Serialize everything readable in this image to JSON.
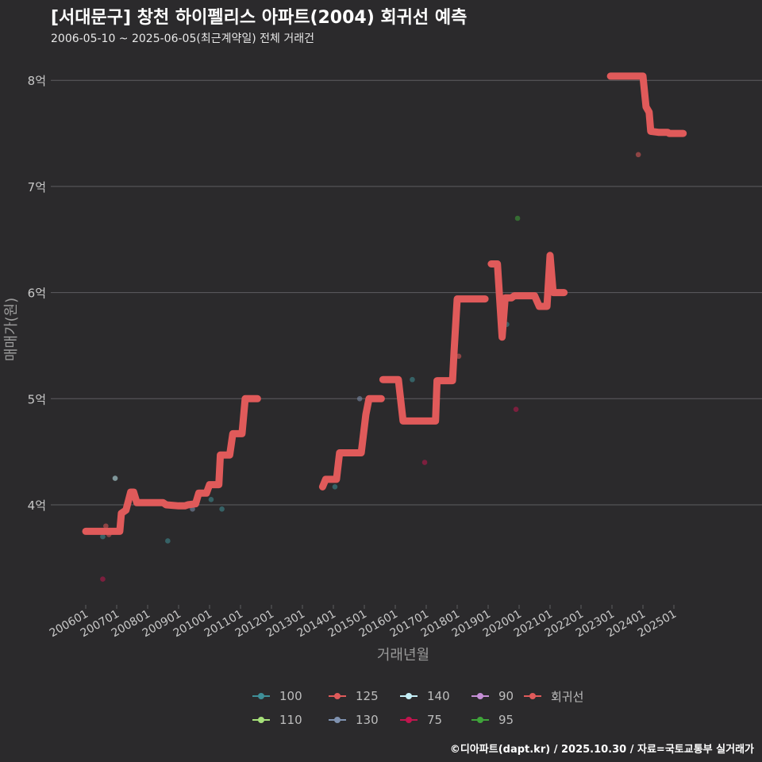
{
  "title": "[서대문구] 창천 하이펠리스 아파트(2004) 회귀선 예측",
  "subtitle": "2006-05-10 ~ 2025-06-05(최근계약일) 전체 거래건",
  "caption": "©디아파트(dapt.kr) / 2025.10.30 / 자료=국토교통부 실거래가",
  "colors": {
    "background": "#2b2a2c",
    "grid": "#5e5d60",
    "axis_text": "#c8c8c8",
    "axis_title": "#9a9a9a",
    "regression": "#e05a5a"
  },
  "legend": [
    {
      "label": "100",
      "color": "#3f8f98"
    },
    {
      "label": "110",
      "color": "#a6e07a"
    },
    {
      "label": "125",
      "color": "#e05a5a"
    },
    {
      "label": "130",
      "color": "#7f92b0"
    },
    {
      "label": "140",
      "color": "#c4eef6"
    },
    {
      "label": "75",
      "color": "#c0154e"
    },
    {
      "label": "90",
      "color": "#c58fd6"
    },
    {
      "label": "95",
      "color": "#3fa33a"
    },
    {
      "label": "회귀선",
      "color": "#e05a5a"
    }
  ],
  "chart_data": {
    "type": "scatter",
    "title": "[서대문구] 창천 하이펠리스 아파트(2004) 회귀선 예측",
    "xlabel": "거래년월",
    "ylabel": "매매가(원)",
    "x_ticks": [
      "200601",
      "200701",
      "200801",
      "200901",
      "201001",
      "201101",
      "201201",
      "201301",
      "201401",
      "201501",
      "201601",
      "201701",
      "201801",
      "201901",
      "202001",
      "202101",
      "202201",
      "202301",
      "202401",
      "202501"
    ],
    "xlim": [
      2005.5,
      2026.3
    ],
    "ylim": [
      3.05,
      8.45
    ],
    "y_ticks": [
      4,
      5,
      6,
      7,
      8
    ],
    "y_tick_labels": [
      "4억",
      "5억",
      "6억",
      "7억",
      "8억"
    ],
    "regression_line": [
      [
        [
          2006.0,
          3.75
        ],
        [
          2007.1,
          3.75
        ],
        [
          2007.15,
          3.92
        ],
        [
          2007.3,
          3.95
        ],
        [
          2007.45,
          4.12
        ],
        [
          2007.55,
          4.12
        ],
        [
          2007.65,
          4.02
        ],
        [
          2008.5,
          4.02
        ],
        [
          2008.6,
          4.0
        ],
        [
          2009.0,
          3.99
        ],
        [
          2009.2,
          3.99
        ],
        [
          2009.3,
          4.0
        ],
        [
          2009.55,
          4.01
        ],
        [
          2009.65,
          4.11
        ],
        [
          2009.9,
          4.11
        ],
        [
          2010.0,
          4.19
        ],
        [
          2010.3,
          4.19
        ],
        [
          2010.35,
          4.47
        ],
        [
          2010.65,
          4.47
        ],
        [
          2010.75,
          4.67
        ],
        [
          2011.05,
          4.67
        ],
        [
          2011.15,
          5.0
        ],
        [
          2011.55,
          5.0
        ]
      ],
      [
        [
          2013.65,
          4.17
        ],
        [
          2013.75,
          4.24
        ],
        [
          2014.1,
          4.24
        ],
        [
          2014.2,
          4.49
        ],
        [
          2014.9,
          4.49
        ],
        [
          2015.05,
          4.85
        ],
        [
          2015.15,
          5.0
        ],
        [
          2015.55,
          5.0
        ]
      ],
      [
        [
          2015.6,
          5.18
        ],
        [
          2016.1,
          5.18
        ],
        [
          2016.25,
          4.79
        ],
        [
          2017.3,
          4.79
        ],
        [
          2017.35,
          5.17
        ],
        [
          2017.85,
          5.17
        ],
        [
          2017.9,
          5.45
        ],
        [
          2018.0,
          5.94
        ],
        [
          2018.9,
          5.94
        ]
      ],
      [
        [
          2019.1,
          6.27
        ],
        [
          2019.3,
          6.27
        ],
        [
          2019.45,
          5.58
        ],
        [
          2019.55,
          5.95
        ],
        [
          2019.75,
          5.95
        ],
        [
          2019.85,
          5.97
        ],
        [
          2020.5,
          5.97
        ],
        [
          2020.65,
          5.87
        ],
        [
          2020.9,
          5.87
        ],
        [
          2021.0,
          6.35
        ],
        [
          2021.1,
          6.0
        ],
        [
          2021.45,
          6.0
        ]
      ],
      [
        [
          2022.95,
          8.04
        ],
        [
          2024.0,
          8.04
        ],
        [
          2024.1,
          7.75
        ],
        [
          2024.2,
          7.7
        ],
        [
          2024.25,
          7.52
        ],
        [
          2024.5,
          7.51
        ],
        [
          2024.8,
          7.51
        ],
        [
          2024.85,
          7.5
        ],
        [
          2025.3,
          7.5
        ]
      ]
    ],
    "points": [
      {
        "area": "125",
        "date": 2006.65,
        "price": 3.8
      },
      {
        "area": "125",
        "date": 2006.75,
        "price": 3.72
      },
      {
        "area": "100",
        "date": 2006.55,
        "price": 3.7
      },
      {
        "area": "75",
        "date": 2006.55,
        "price": 3.3
      },
      {
        "area": "140",
        "date": 2006.95,
        "price": 4.25
      },
      {
        "area": "100",
        "date": 2008.65,
        "price": 3.66
      },
      {
        "area": "130",
        "date": 2009.45,
        "price": 3.96
      },
      {
        "area": "100",
        "date": 2010.05,
        "price": 4.05
      },
      {
        "area": "100",
        "date": 2010.4,
        "price": 3.96
      },
      {
        "area": "110",
        "date": 2014.15,
        "price": 4.3
      },
      {
        "area": "100",
        "date": 2014.05,
        "price": 4.17
      },
      {
        "area": "130",
        "date": 2014.85,
        "price": 5.0
      },
      {
        "area": "100",
        "date": 2016.55,
        "price": 5.18
      },
      {
        "area": "75",
        "date": 2016.95,
        "price": 4.4
      },
      {
        "area": "125",
        "date": 2018.05,
        "price": 5.4
      },
      {
        "area": "100",
        "date": 2019.6,
        "price": 5.7
      },
      {
        "area": "75",
        "date": 2019.9,
        "price": 4.9
      },
      {
        "area": "95",
        "date": 2019.95,
        "price": 6.7
      },
      {
        "area": "125",
        "date": 2023.85,
        "price": 7.3
      }
    ]
  }
}
